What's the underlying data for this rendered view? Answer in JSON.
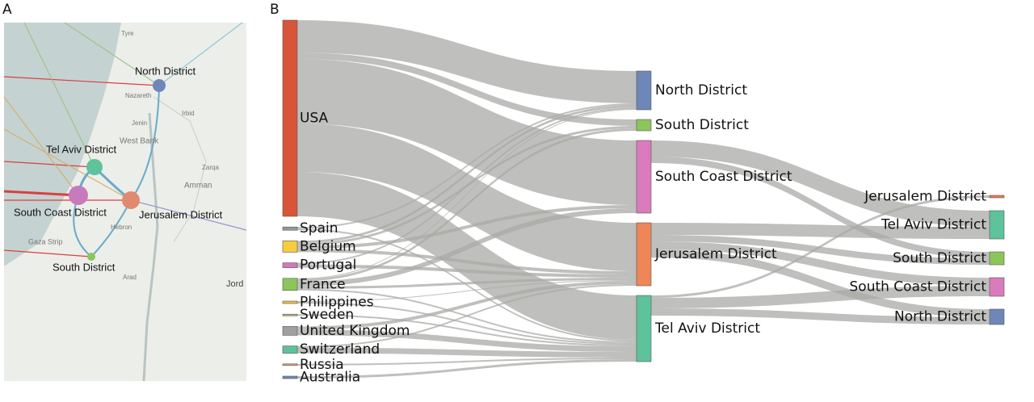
{
  "panels": {
    "a": "A",
    "b": "B"
  },
  "map": {
    "districts": [
      "North District",
      "Tel Aviv District",
      "South Coast District",
      "Jerusalem District",
      "South District"
    ],
    "places": [
      "Tyre",
      "Nazareth",
      "Jenin",
      "Irbid",
      "West Bank",
      "Zarqa",
      "Amman",
      "Hebron",
      "Gaza Strip",
      "Arad",
      "Jord"
    ]
  },
  "chart_data": {
    "type": "sankey",
    "nodes": [
      {
        "name": "USA",
        "color": "#d9553a",
        "column": 0
      },
      {
        "name": "Spain",
        "color": "#8f9c9a",
        "column": 0
      },
      {
        "name": "Belgium",
        "color": "#f5cd3f",
        "column": 0
      },
      {
        "name": "Portugal",
        "color": "#d975b9",
        "column": 0
      },
      {
        "name": "France",
        "color": "#8cc55a",
        "column": 0
      },
      {
        "name": "Philippines",
        "color": "#efc040",
        "column": 0
      },
      {
        "name": "Sweden",
        "color": "#b5b57a",
        "column": 0
      },
      {
        "name": "United Kingdom",
        "color": "#a0a0a0",
        "column": 0
      },
      {
        "name": "Switzerland",
        "color": "#5ec29a",
        "column": 0
      },
      {
        "name": "Russia",
        "color": "#e0a070",
        "column": 0
      },
      {
        "name": "Australia",
        "color": "#6a8ab8",
        "column": 0
      },
      {
        "name": "North District",
        "color": "#6f87b8",
        "column": 1
      },
      {
        "name": "South District",
        "color": "#8cc55a",
        "column": 1
      },
      {
        "name": "South Coast District",
        "color": "#d97bbd",
        "column": 1
      },
      {
        "name": "Jerusalem District",
        "color": "#ee8658",
        "column": 1
      },
      {
        "name": "Tel Aviv District",
        "color": "#5ec29a",
        "column": 1
      },
      {
        "name": "Jerusalem District",
        "color": "#ee7a55",
        "column": 2
      },
      {
        "name": "Tel Aviv District",
        "color": "#5ec29a",
        "column": 2
      },
      {
        "name": "South District",
        "color": "#8cc55a",
        "column": 2
      },
      {
        "name": "South Coast District",
        "color": "#d97bbd",
        "column": 2
      },
      {
        "name": "North District",
        "color": "#6f87b8",
        "column": 2
      }
    ],
    "links": [
      {
        "source": 0,
        "target": 11,
        "value": 40
      },
      {
        "source": 0,
        "target": 12,
        "value": 8
      },
      {
        "source": 0,
        "target": 13,
        "value": 80
      },
      {
        "source": 0,
        "target": 14,
        "value": 60
      },
      {
        "source": 0,
        "target": 15,
        "value": 55
      },
      {
        "source": 1,
        "target": 11,
        "value": 2
      },
      {
        "source": 1,
        "target": 15,
        "value": 2
      },
      {
        "source": 2,
        "target": 11,
        "value": 3
      },
      {
        "source": 2,
        "target": 12,
        "value": 3
      },
      {
        "source": 2,
        "target": 13,
        "value": 4
      },
      {
        "source": 2,
        "target": 14,
        "value": 4
      },
      {
        "source": 3,
        "target": 11,
        "value": 2
      },
      {
        "source": 3,
        "target": 14,
        "value": 4
      },
      {
        "source": 4,
        "target": 11,
        "value": 1
      },
      {
        "source": 4,
        "target": 12,
        "value": 3
      },
      {
        "source": 4,
        "target": 13,
        "value": 6
      },
      {
        "source": 4,
        "target": 14,
        "value": 3
      },
      {
        "source": 4,
        "target": 15,
        "value": 2
      },
      {
        "source": 5,
        "target": 14,
        "value": 1
      },
      {
        "source": 5,
        "target": 15,
        "value": 2
      },
      {
        "source": 6,
        "target": 15,
        "value": 2
      },
      {
        "source": 7,
        "target": 14,
        "value": 4
      },
      {
        "source": 7,
        "target": 15,
        "value": 7
      },
      {
        "source": 8,
        "target": 14,
        "value": 2
      },
      {
        "source": 8,
        "target": 15,
        "value": 7
      },
      {
        "source": 9,
        "target": 15,
        "value": 2
      },
      {
        "source": 10,
        "target": 15,
        "value": 3
      },
      {
        "source": 13,
        "target": 17,
        "value": 20
      },
      {
        "source": 13,
        "target": 18,
        "value": 8
      },
      {
        "source": 14,
        "target": 17,
        "value": 15
      },
      {
        "source": 14,
        "target": 18,
        "value": 8
      },
      {
        "source": 14,
        "target": 19,
        "value": 10
      },
      {
        "source": 14,
        "target": 20,
        "value": 10
      },
      {
        "source": 15,
        "target": 16,
        "value": 3
      },
      {
        "source": 15,
        "target": 19,
        "value": 13
      },
      {
        "source": 15,
        "target": 20,
        "value": 9
      }
    ]
  }
}
